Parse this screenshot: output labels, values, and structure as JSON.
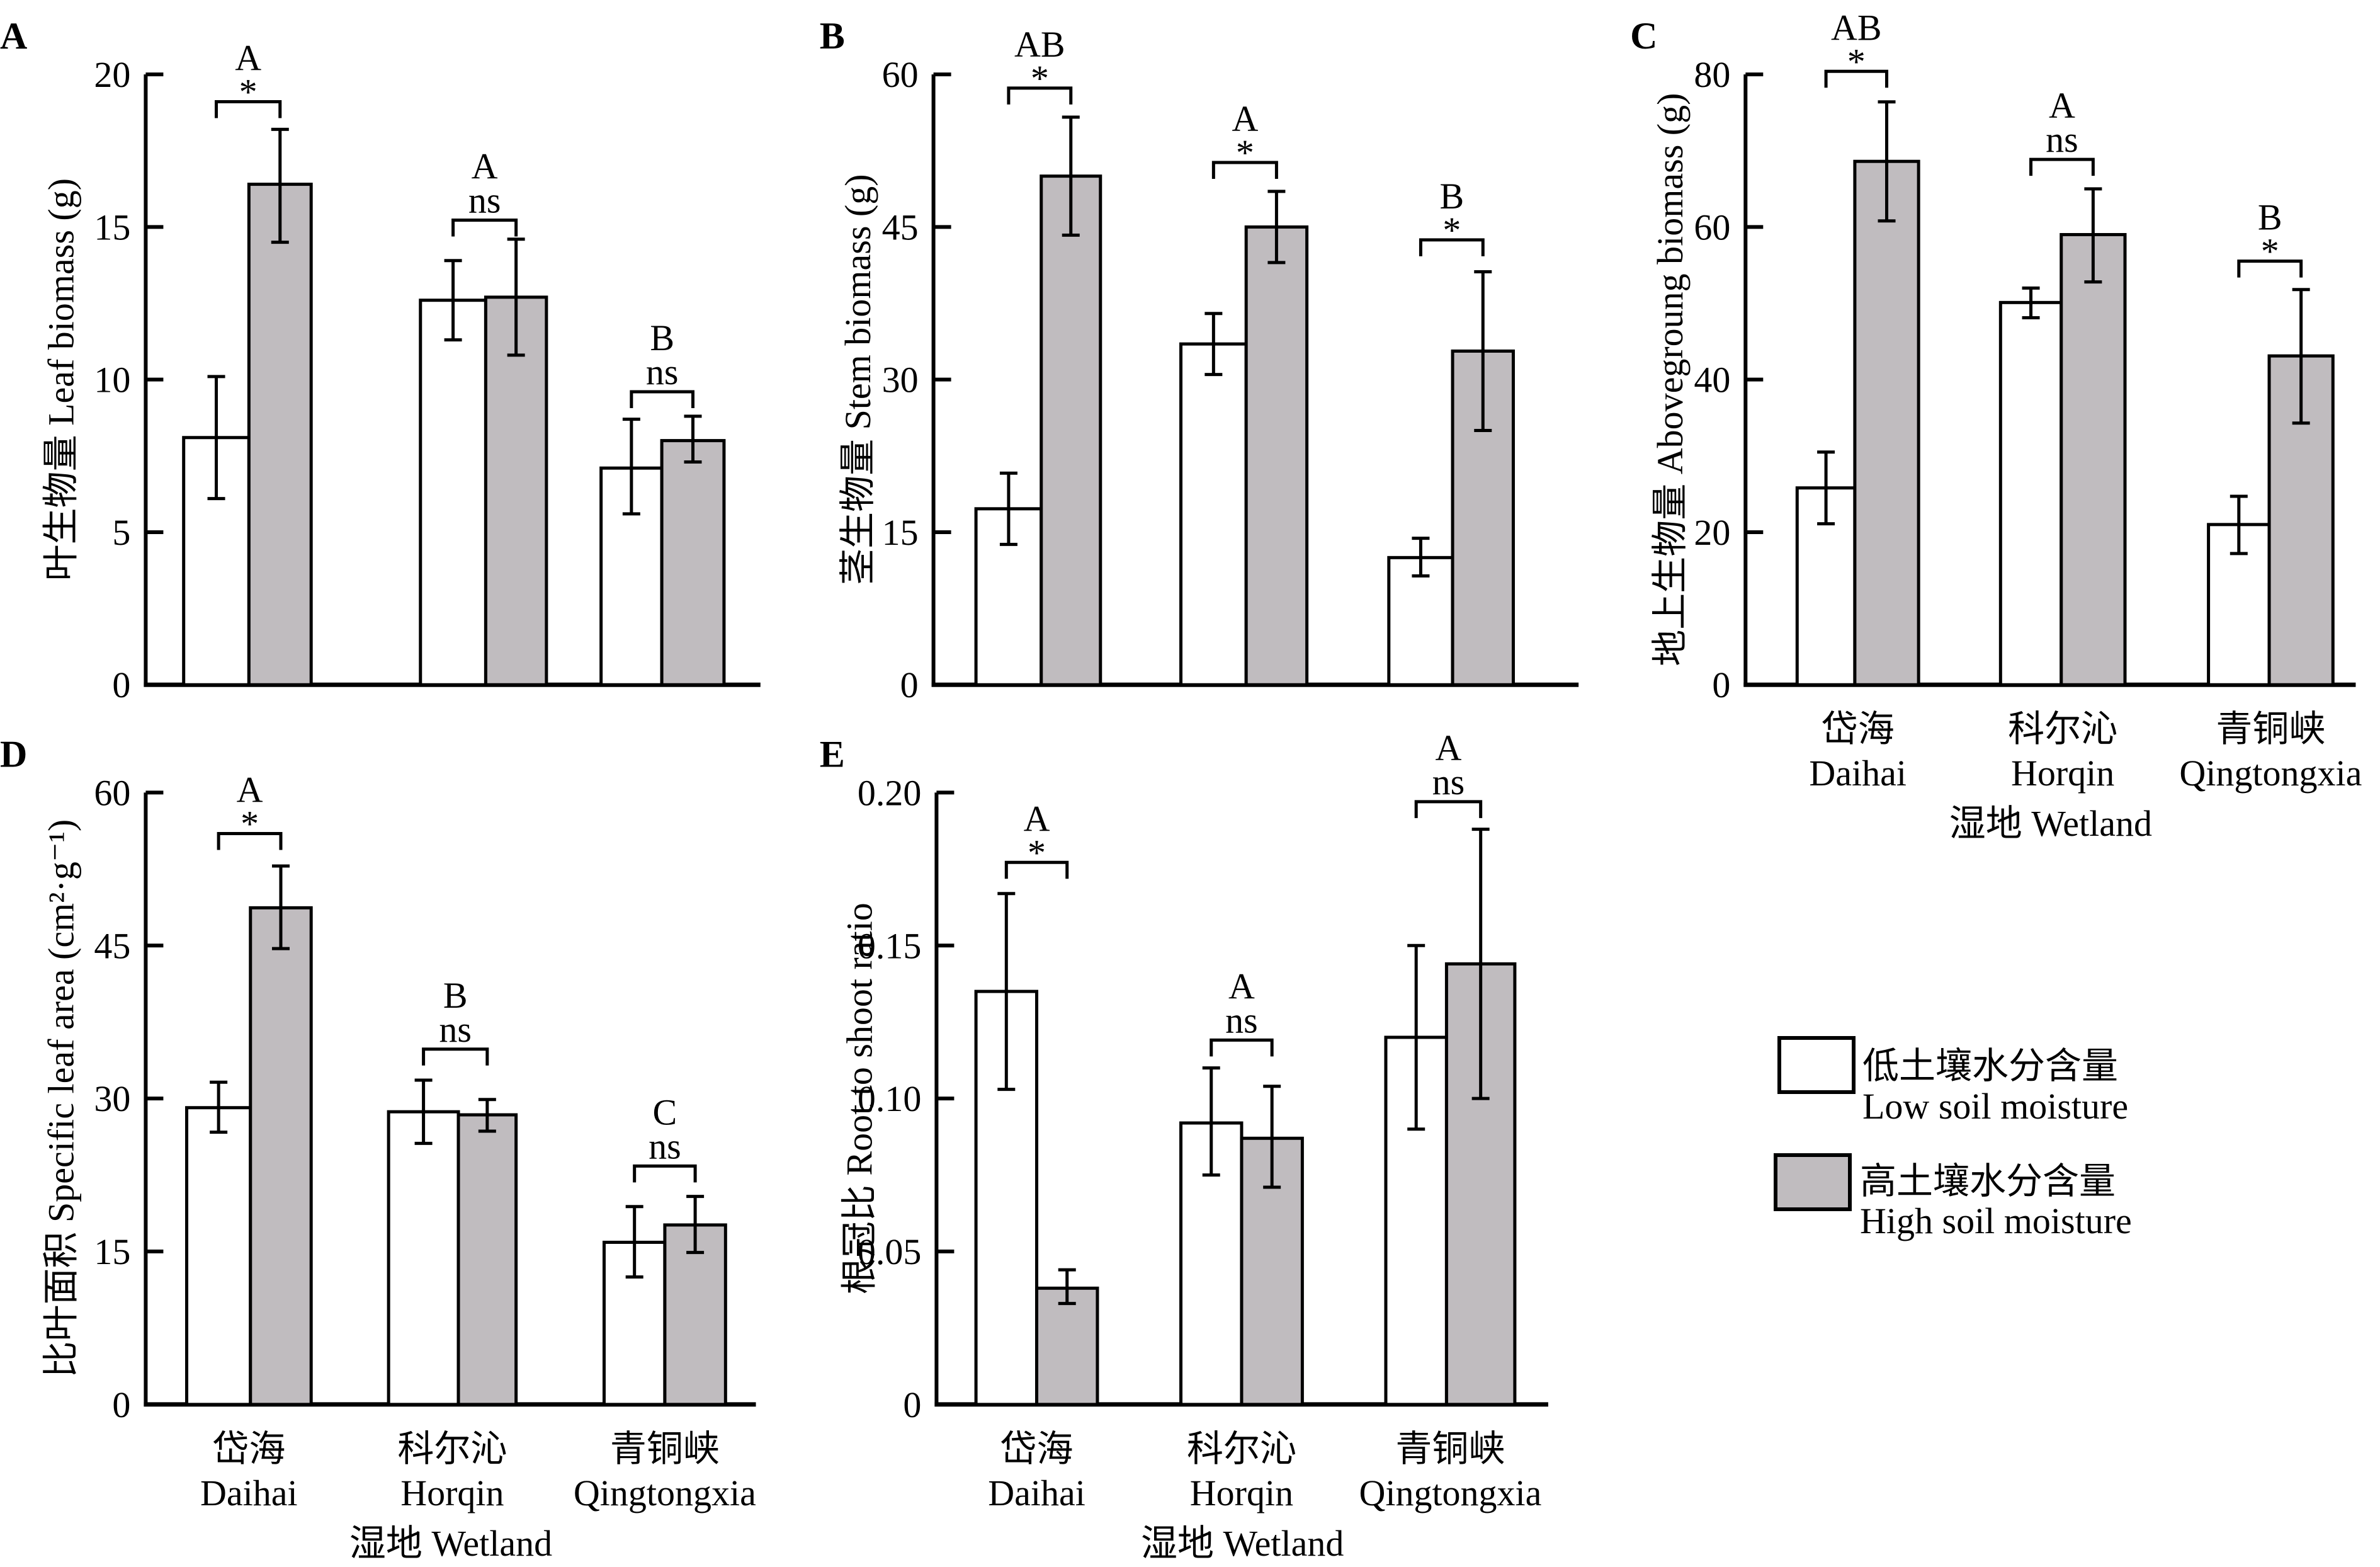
{
  "colors": {
    "low": "#FFFFFF",
    "high": "#C0BCBF",
    "stroke": "#000000"
  },
  "legend": {
    "position": "right",
    "items": [
      {
        "series": "low",
        "label_cn": "低土壤水分含量",
        "label_en": "Low soil moisture"
      },
      {
        "series": "high",
        "label_cn": "高土壤水分含量",
        "label_en": "High soil moisture"
      }
    ]
  },
  "categories": [
    {
      "cn": "岱海",
      "en": "Daihai"
    },
    {
      "cn": "科尔沁",
      "en": "Horqin"
    },
    {
      "cn": "青铜峡",
      "en": "Qingtongxia"
    }
  ],
  "xlabel": "湿地 Wetland",
  "chart_data": [
    {
      "panel": "A",
      "type": "bar",
      "ylabel": "叶生物量 Leaf biomass (g)",
      "ylim": [
        0,
        20
      ],
      "yticks": [
        "0",
        "5",
        "10",
        "15",
        "20"
      ],
      "ytick_values": [
        0,
        5,
        10,
        15,
        20
      ],
      "show_xlabels": false,
      "series": [
        {
          "name": "Low soil moisture",
          "key": "low",
          "values": [
            8.1,
            12.6,
            7.1
          ],
          "err_low": [
            6.1,
            11.3,
            5.6
          ],
          "err_high": [
            10.1,
            13.9,
            8.7
          ]
        },
        {
          "name": "High soil moisture",
          "key": "high",
          "values": [
            16.4,
            12.7,
            8.0
          ],
          "err_low": [
            14.5,
            10.8,
            7.3
          ],
          "err_high": [
            18.2,
            14.6,
            8.8
          ]
        }
      ],
      "significance": [
        {
          "letter": "A",
          "mark": "*"
        },
        {
          "letter": "A",
          "mark": "ns"
        },
        {
          "letter": "B",
          "mark": "ns"
        }
      ]
    },
    {
      "panel": "B",
      "type": "bar",
      "ylabel": "茎生物量 Stem biomass (g)",
      "ylim": [
        0,
        60
      ],
      "yticks": [
        "0",
        "15",
        "30",
        "45",
        "60"
      ],
      "ytick_values": [
        0,
        15,
        30,
        45,
        60
      ],
      "show_xlabels": false,
      "series": [
        {
          "name": "Low soil moisture",
          "key": "low",
          "values": [
            17.3,
            33.5,
            12.5
          ],
          "err_low": [
            13.8,
            30.5,
            10.7
          ],
          "err_high": [
            20.8,
            36.5,
            14.4
          ]
        },
        {
          "name": "High soil moisture",
          "key": "high",
          "values": [
            50.0,
            45.0,
            32.8
          ],
          "err_low": [
            44.2,
            41.5,
            25.0
          ],
          "err_high": [
            55.8,
            48.5,
            40.6
          ]
        }
      ],
      "significance": [
        {
          "letter": "AB",
          "mark": "*"
        },
        {
          "letter": "A",
          "mark": "*"
        },
        {
          "letter": "B",
          "mark": "*"
        }
      ]
    },
    {
      "panel": "C",
      "type": "bar",
      "ylabel": "地上生物量 Abovegroung biomass (g)",
      "ylim": [
        0,
        80
      ],
      "yticks": [
        "0",
        "20",
        "40",
        "60",
        "80"
      ],
      "ytick_values": [
        0,
        20,
        40,
        60,
        80
      ],
      "show_xlabels": true,
      "series": [
        {
          "name": "Low soil moisture",
          "key": "low",
          "values": [
            25.8,
            50.1,
            21.0
          ],
          "err_low": [
            21.1,
            48.1,
            17.2
          ],
          "err_high": [
            30.5,
            52.0,
            24.7
          ]
        },
        {
          "name": "High soil moisture",
          "key": "high",
          "values": [
            68.6,
            59.0,
            43.1
          ],
          "err_low": [
            60.8,
            52.8,
            34.3
          ],
          "err_high": [
            76.4,
            65.0,
            51.8
          ]
        }
      ],
      "significance": [
        {
          "letter": "AB",
          "mark": "*"
        },
        {
          "letter": "A",
          "mark": "ns"
        },
        {
          "letter": "B",
          "mark": "*"
        }
      ]
    },
    {
      "panel": "D",
      "type": "bar",
      "ylabel": "比叶面积 Specific leaf area (cm²·g⁻¹)",
      "ylim": [
        0,
        60
      ],
      "yticks": [
        "0",
        "15",
        "30",
        "45",
        "60"
      ],
      "ytick_values": [
        0,
        15,
        30,
        45,
        60
      ],
      "show_xlabels": true,
      "series": [
        {
          "name": "Low soil moisture",
          "key": "low",
          "values": [
            29.1,
            28.7,
            15.9
          ],
          "err_low": [
            26.7,
            25.6,
            12.5
          ],
          "err_high": [
            31.6,
            31.8,
            19.4
          ]
        },
        {
          "name": "High soil moisture",
          "key": "high",
          "values": [
            48.7,
            28.4,
            17.6
          ],
          "err_low": [
            44.7,
            26.8,
            14.9
          ],
          "err_high": [
            52.8,
            29.9,
            20.4
          ]
        }
      ],
      "significance": [
        {
          "letter": "A",
          "mark": "*"
        },
        {
          "letter": "B",
          "mark": "ns"
        },
        {
          "letter": "C",
          "mark": "ns"
        }
      ]
    },
    {
      "panel": "E",
      "type": "bar",
      "ylabel": "根冠比 Root to shoot ratio",
      "ylim": [
        0,
        0.2
      ],
      "yticks": [
        "0",
        "0.05",
        "0.10",
        "0.15",
        "0.20"
      ],
      "ytick_values": [
        0,
        0.05,
        0.1,
        0.15,
        0.2
      ],
      "show_xlabels": true,
      "series": [
        {
          "name": "Low soil moisture",
          "key": "low",
          "values": [
            0.135,
            0.092,
            0.12
          ],
          "err_low": [
            0.103,
            0.075,
            0.09
          ],
          "err_high": [
            0.167,
            0.11,
            0.15
          ]
        },
        {
          "name": "High soil moisture",
          "key": "high",
          "values": [
            0.038,
            0.087,
            0.144
          ],
          "err_low": [
            0.033,
            0.071,
            0.1
          ],
          "err_high": [
            0.044,
            0.104,
            0.188
          ]
        }
      ],
      "significance": [
        {
          "letter": "A",
          "mark": "*"
        },
        {
          "letter": "A",
          "mark": "ns"
        },
        {
          "letter": "A",
          "mark": "ns"
        }
      ]
    }
  ]
}
